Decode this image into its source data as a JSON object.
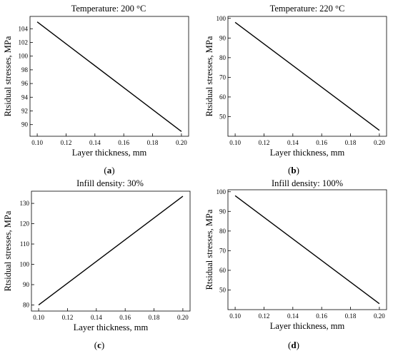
{
  "chart_data": [
    {
      "type": "line",
      "panel_label": "(a)",
      "panel_letter": "a",
      "title": "Temperature: 200 °C",
      "xlabel": "Layer thickness, mm",
      "ylabel": "Rtsidual stresses, MPa",
      "xlim": [
        0.095,
        0.205
      ],
      "ylim": [
        88.3,
        105.8
      ],
      "xticks": [
        0.1,
        0.12,
        0.14,
        0.16,
        0.18,
        0.2
      ],
      "yticks": [
        90,
        92,
        94,
        96,
        98,
        100,
        102,
        104
      ],
      "x": [
        0.1,
        0.2
      ],
      "y": [
        105.0,
        89.0
      ]
    },
    {
      "type": "line",
      "panel_label": "(b)",
      "panel_letter": "b",
      "title": "Temperature: 220 °C",
      "xlabel": "Layer thickness, mm",
      "ylabel": "Rtsidual stresses, MPa",
      "xlim": [
        0.095,
        0.205
      ],
      "ylim": [
        40,
        101
      ],
      "xticks": [
        0.1,
        0.12,
        0.14,
        0.16,
        0.18,
        0.2
      ],
      "yticks": [
        50,
        60,
        70,
        80,
        90,
        100
      ],
      "x": [
        0.1,
        0.2
      ],
      "y": [
        98.0,
        43.0
      ]
    },
    {
      "type": "line",
      "panel_label": "(c)",
      "panel_letter": "c",
      "title": "Infill density: 30%",
      "xlabel": "Layer thickness, mm",
      "ylabel": "Rtsidual stresses, MPa",
      "xlim": [
        0.095,
        0.205
      ],
      "ylim": [
        77,
        136
      ],
      "xticks": [
        0.1,
        0.12,
        0.14,
        0.16,
        0.18,
        0.2
      ],
      "yticks": [
        80,
        90,
        100,
        110,
        120,
        130
      ],
      "x": [
        0.1,
        0.2
      ],
      "y": [
        80.0,
        133.5
      ]
    },
    {
      "type": "line",
      "panel_label": "(d)",
      "panel_letter": "d",
      "title": "Infill density: 100%",
      "xlabel": "Layer thickness, mm",
      "ylabel": "Rtsidual stresses, MPa",
      "xlim": [
        0.095,
        0.205
      ],
      "ylim": [
        40,
        101
      ],
      "xticks": [
        0.1,
        0.12,
        0.14,
        0.16,
        0.18,
        0.2
      ],
      "yticks": [
        50,
        60,
        70,
        80,
        90,
        100
      ],
      "x": [
        0.1,
        0.2
      ],
      "y": [
        98.0,
        43.0
      ]
    }
  ]
}
